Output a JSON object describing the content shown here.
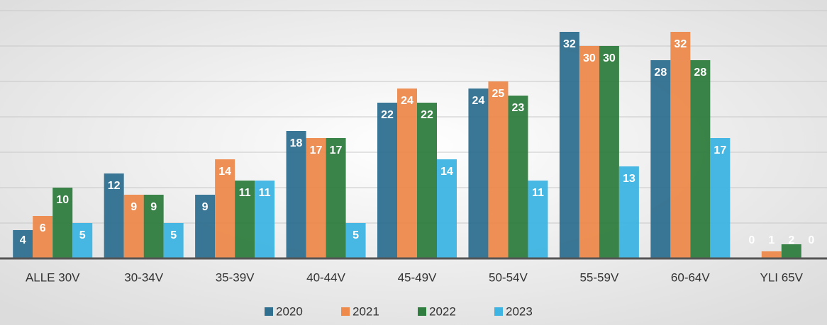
{
  "chart_data": {
    "type": "bar",
    "categories": [
      "ALLE 30V",
      "30-34V",
      "35-39V",
      "40-44V",
      "45-49V",
      "50-54V",
      "55-59V",
      "60-64V",
      "YLI 65V"
    ],
    "series": [
      {
        "name": "2020",
        "color": "#2f6f8f",
        "values": [
          4,
          12,
          9,
          18,
          22,
          24,
          32,
          28,
          0
        ]
      },
      {
        "name": "2021",
        "color": "#ed8a4c",
        "values": [
          6,
          9,
          14,
          17,
          24,
          25,
          30,
          32,
          1
        ]
      },
      {
        "name": "2022",
        "color": "#2f7d3f",
        "values": [
          10,
          9,
          11,
          17,
          22,
          23,
          30,
          28,
          2
        ]
      },
      {
        "name": "2023",
        "color": "#3db4e2",
        "values": [
          5,
          5,
          11,
          5,
          14,
          11,
          13,
          17,
          0
        ]
      }
    ],
    "ylim": [
      0,
      35
    ],
    "yticks": [
      0,
      5,
      10,
      15,
      20,
      25,
      30,
      35
    ],
    "grid": true
  }
}
